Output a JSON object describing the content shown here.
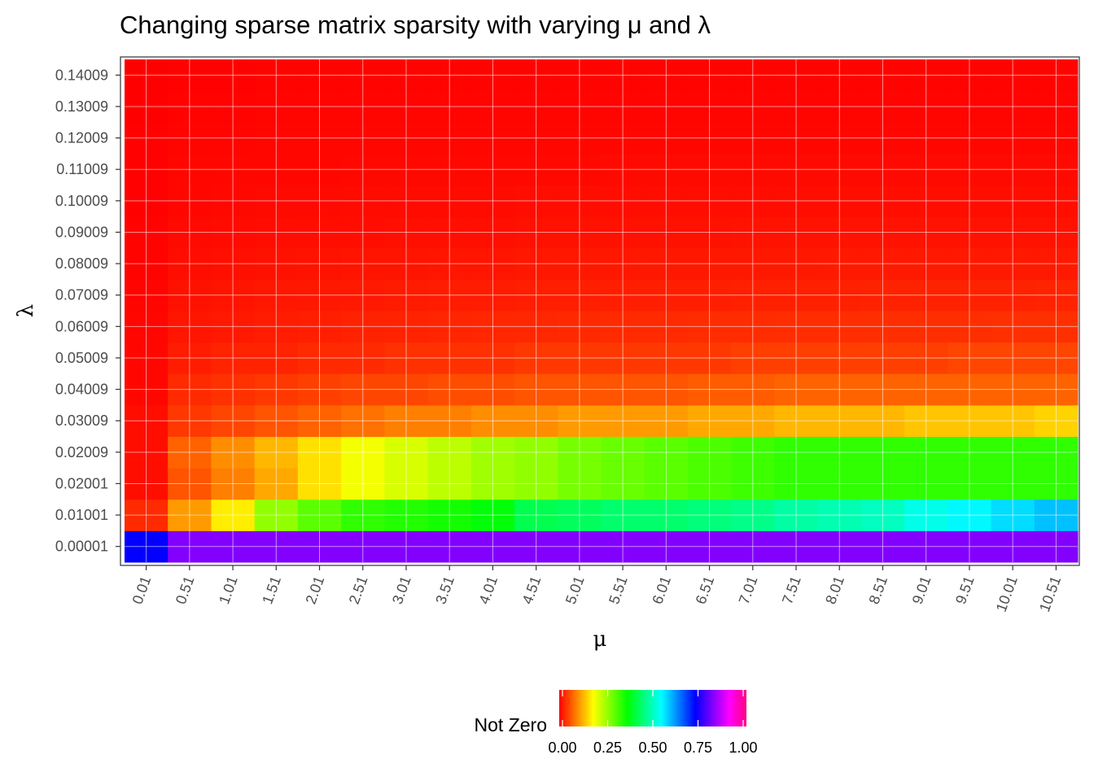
{
  "chart_data": {
    "type": "heatmap",
    "title": "Changing sparse matrix sparsity with varying μ and λ",
    "xlabel": "μ",
    "ylabel": "λ",
    "x": [
      "0.01",
      "0.51",
      "1.01",
      "1.51",
      "2.01",
      "2.51",
      "3.01",
      "3.51",
      "4.01",
      "4.51",
      "5.01",
      "5.51",
      "6.01",
      "6.51",
      "7.01",
      "7.51",
      "8.01",
      "8.51",
      "9.01",
      "9.51",
      "10.01",
      "10.51"
    ],
    "y": [
      "0.00001",
      "0.01001",
      "0.02001",
      "0.02009",
      "0.03009",
      "0.04009",
      "0.05009",
      "0.06009",
      "0.07009",
      "0.08009",
      "0.09009",
      "0.10009",
      "0.11009",
      "0.12009",
      "0.13009",
      "0.14009"
    ],
    "values": [
      [
        0.73,
        0.82,
        0.82,
        0.82,
        0.82,
        0.82,
        0.82,
        0.82,
        0.82,
        0.82,
        0.82,
        0.82,
        0.82,
        0.82,
        0.82,
        0.82,
        0.82,
        0.82,
        0.82,
        0.82,
        0.82,
        0.82
      ],
      [
        0.03,
        0.11,
        0.17,
        0.26,
        0.3,
        0.33,
        0.34,
        0.35,
        0.37,
        0.42,
        0.43,
        0.44,
        0.44,
        0.45,
        0.46,
        0.48,
        0.49,
        0.5,
        0.53,
        0.55,
        0.57,
        0.59
      ],
      [
        0.01,
        0.06,
        0.09,
        0.12,
        0.16,
        0.19,
        0.21,
        0.23,
        0.25,
        0.26,
        0.28,
        0.29,
        0.3,
        0.31,
        0.32,
        0.33,
        0.33,
        0.33,
        0.33,
        0.33,
        0.33,
        0.33
      ],
      [
        0.01,
        0.07,
        0.1,
        0.13,
        0.16,
        0.19,
        0.21,
        0.23,
        0.25,
        0.26,
        0.28,
        0.29,
        0.3,
        0.31,
        0.32,
        0.33,
        0.33,
        0.33,
        0.33,
        0.33,
        0.33,
        0.33
      ],
      [
        0.01,
        0.04,
        0.05,
        0.06,
        0.07,
        0.08,
        0.09,
        0.09,
        0.1,
        0.1,
        0.11,
        0.11,
        0.11,
        0.12,
        0.12,
        0.13,
        0.13,
        0.13,
        0.14,
        0.14,
        0.14,
        0.15
      ],
      [
        0.005,
        0.03,
        0.035,
        0.04,
        0.045,
        0.05,
        0.05,
        0.055,
        0.055,
        0.06,
        0.06,
        0.06,
        0.06,
        0.065,
        0.065,
        0.07,
        0.07,
        0.07,
        0.07,
        0.07,
        0.07,
        0.07
      ],
      [
        0.005,
        0.02,
        0.025,
        0.025,
        0.03,
        0.03,
        0.035,
        0.035,
        0.035,
        0.04,
        0.04,
        0.04,
        0.04,
        0.04,
        0.045,
        0.045,
        0.045,
        0.045,
        0.045,
        0.05,
        0.05,
        0.05
      ],
      [
        0.004,
        0.015,
        0.018,
        0.02,
        0.022,
        0.024,
        0.025,
        0.026,
        0.027,
        0.028,
        0.029,
        0.03,
        0.03,
        0.031,
        0.031,
        0.032,
        0.032,
        0.033,
        0.033,
        0.033,
        0.034,
        0.034
      ],
      [
        0.003,
        0.012,
        0.014,
        0.016,
        0.017,
        0.018,
        0.019,
        0.02,
        0.02,
        0.021,
        0.021,
        0.022,
        0.022,
        0.022,
        0.023,
        0.023,
        0.023,
        0.024,
        0.024,
        0.024,
        0.024,
        0.025
      ],
      [
        0.002,
        0.009,
        0.011,
        0.012,
        0.013,
        0.014,
        0.014,
        0.015,
        0.015,
        0.016,
        0.016,
        0.016,
        0.017,
        0.017,
        0.017,
        0.017,
        0.018,
        0.018,
        0.018,
        0.018,
        0.018,
        0.018
      ],
      [
        0.002,
        0.007,
        0.008,
        0.009,
        0.01,
        0.01,
        0.011,
        0.011,
        0.011,
        0.012,
        0.012,
        0.012,
        0.012,
        0.012,
        0.013,
        0.013,
        0.013,
        0.013,
        0.013,
        0.013,
        0.013,
        0.013
      ],
      [
        0.001,
        0.005,
        0.006,
        0.007,
        0.007,
        0.008,
        0.008,
        0.008,
        0.008,
        0.009,
        0.009,
        0.009,
        0.009,
        0.009,
        0.009,
        0.009,
        0.01,
        0.01,
        0.01,
        0.01,
        0.01,
        0.01
      ],
      [
        0.001,
        0.004,
        0.005,
        0.005,
        0.005,
        0.006,
        0.006,
        0.006,
        0.006,
        0.006,
        0.006,
        0.007,
        0.007,
        0.007,
        0.007,
        0.007,
        0.007,
        0.007,
        0.007,
        0.007,
        0.007,
        0.007
      ],
      [
        0.001,
        0.003,
        0.003,
        0.004,
        0.004,
        0.004,
        0.004,
        0.004,
        0.004,
        0.004,
        0.005,
        0.005,
        0.005,
        0.005,
        0.005,
        0.005,
        0.005,
        0.005,
        0.005,
        0.005,
        0.005,
        0.005
      ],
      [
        0.0,
        0.002,
        0.002,
        0.003,
        0.003,
        0.003,
        0.003,
        0.003,
        0.003,
        0.003,
        0.003,
        0.003,
        0.003,
        0.003,
        0.003,
        0.003,
        0.003,
        0.003,
        0.003,
        0.003,
        0.003,
        0.003
      ],
      [
        0.0,
        0.001,
        0.001,
        0.002,
        0.002,
        0.002,
        0.002,
        0.002,
        0.002,
        0.002,
        0.002,
        0.002,
        0.002,
        0.002,
        0.002,
        0.002,
        0.002,
        0.002,
        0.002,
        0.002,
        0.002,
        0.002
      ]
    ],
    "legend": {
      "title": "Not Zero",
      "placement": "bottom",
      "ticks": [
        "0.00",
        "0.25",
        "0.50",
        "0.75",
        "1.00"
      ],
      "tick_values": [
        0,
        0.25,
        0.5,
        0.75,
        1.0
      ],
      "range": [
        0,
        1
      ],
      "colors": [
        "#ff0000",
        "#ff8000",
        "#ffff00",
        "#80ff00",
        "#00ff00",
        "#00ff80",
        "#00ffff",
        "#0080ff",
        "#0000ff",
        "#8000ff",
        "#ff00ff",
        "#ff0080"
      ]
    },
    "grid": true
  }
}
